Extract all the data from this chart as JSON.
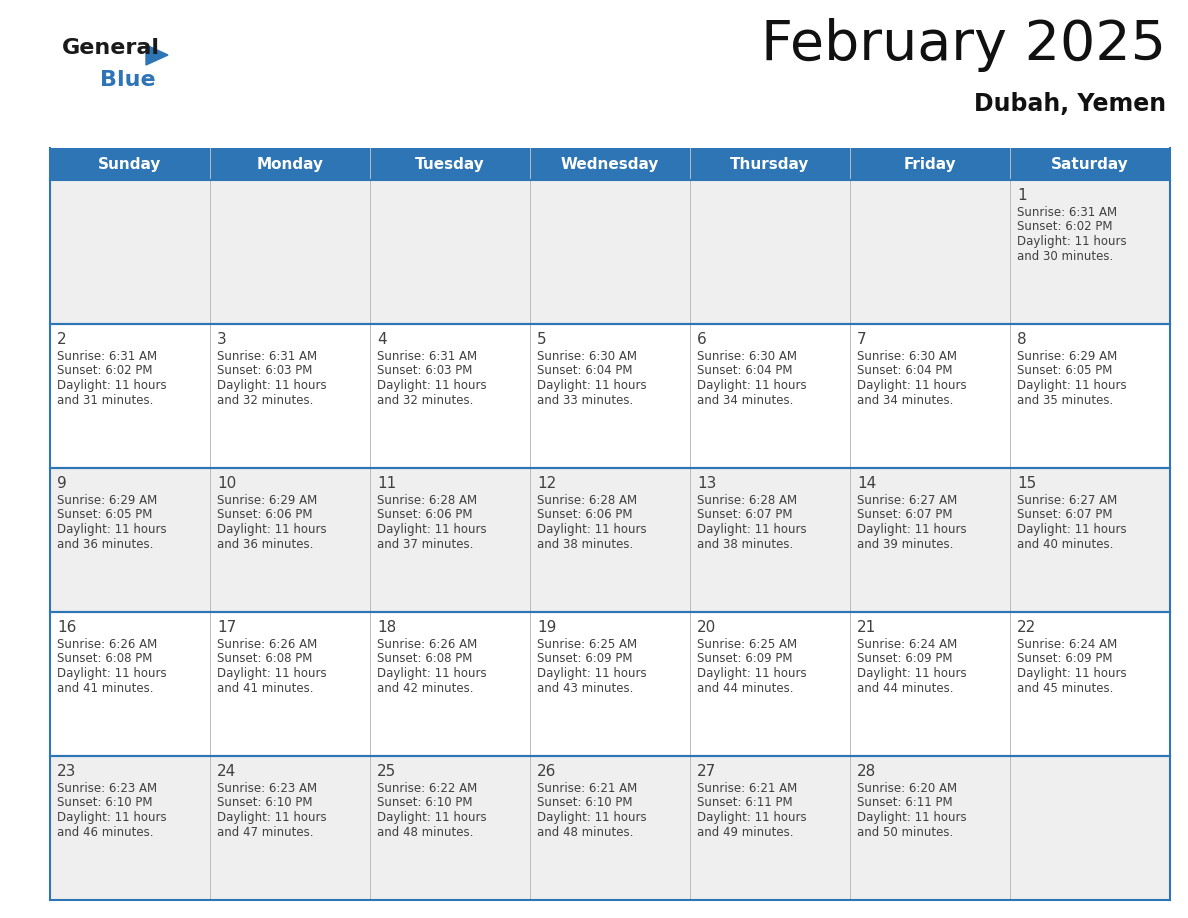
{
  "title": "February 2025",
  "subtitle": "Dubah, Yemen",
  "header_color": "#2E75B6",
  "header_text_color": "#FFFFFF",
  "border_color": "#2E75B6",
  "grid_color": "#AAAAAA",
  "days_of_week": [
    "Sunday",
    "Monday",
    "Tuesday",
    "Wednesday",
    "Thursday",
    "Friday",
    "Saturday"
  ],
  "day_text_color": "#404040",
  "row_bg_colors": [
    "#EFEFEF",
    "#FFFFFF",
    "#EFEFEF",
    "#FFFFFF",
    "#EFEFEF"
  ],
  "calendar_data": [
    [
      null,
      null,
      null,
      null,
      null,
      null,
      {
        "day": 1,
        "sunrise": "6:31 AM",
        "sunset": "6:02 PM",
        "daylight_hours": 11,
        "daylight_minutes": 30
      }
    ],
    [
      {
        "day": 2,
        "sunrise": "6:31 AM",
        "sunset": "6:02 PM",
        "daylight_hours": 11,
        "daylight_minutes": 31
      },
      {
        "day": 3,
        "sunrise": "6:31 AM",
        "sunset": "6:03 PM",
        "daylight_hours": 11,
        "daylight_minutes": 32
      },
      {
        "day": 4,
        "sunrise": "6:31 AM",
        "sunset": "6:03 PM",
        "daylight_hours": 11,
        "daylight_minutes": 32
      },
      {
        "day": 5,
        "sunrise": "6:30 AM",
        "sunset": "6:04 PM",
        "daylight_hours": 11,
        "daylight_minutes": 33
      },
      {
        "day": 6,
        "sunrise": "6:30 AM",
        "sunset": "6:04 PM",
        "daylight_hours": 11,
        "daylight_minutes": 34
      },
      {
        "day": 7,
        "sunrise": "6:30 AM",
        "sunset": "6:04 PM",
        "daylight_hours": 11,
        "daylight_minutes": 34
      },
      {
        "day": 8,
        "sunrise": "6:29 AM",
        "sunset": "6:05 PM",
        "daylight_hours": 11,
        "daylight_minutes": 35
      }
    ],
    [
      {
        "day": 9,
        "sunrise": "6:29 AM",
        "sunset": "6:05 PM",
        "daylight_hours": 11,
        "daylight_minutes": 36
      },
      {
        "day": 10,
        "sunrise": "6:29 AM",
        "sunset": "6:06 PM",
        "daylight_hours": 11,
        "daylight_minutes": 36
      },
      {
        "day": 11,
        "sunrise": "6:28 AM",
        "sunset": "6:06 PM",
        "daylight_hours": 11,
        "daylight_minutes": 37
      },
      {
        "day": 12,
        "sunrise": "6:28 AM",
        "sunset": "6:06 PM",
        "daylight_hours": 11,
        "daylight_minutes": 38
      },
      {
        "day": 13,
        "sunrise": "6:28 AM",
        "sunset": "6:07 PM",
        "daylight_hours": 11,
        "daylight_minutes": 38
      },
      {
        "day": 14,
        "sunrise": "6:27 AM",
        "sunset": "6:07 PM",
        "daylight_hours": 11,
        "daylight_minutes": 39
      },
      {
        "day": 15,
        "sunrise": "6:27 AM",
        "sunset": "6:07 PM",
        "daylight_hours": 11,
        "daylight_minutes": 40
      }
    ],
    [
      {
        "day": 16,
        "sunrise": "6:26 AM",
        "sunset": "6:08 PM",
        "daylight_hours": 11,
        "daylight_minutes": 41
      },
      {
        "day": 17,
        "sunrise": "6:26 AM",
        "sunset": "6:08 PM",
        "daylight_hours": 11,
        "daylight_minutes": 41
      },
      {
        "day": 18,
        "sunrise": "6:26 AM",
        "sunset": "6:08 PM",
        "daylight_hours": 11,
        "daylight_minutes": 42
      },
      {
        "day": 19,
        "sunrise": "6:25 AM",
        "sunset": "6:09 PM",
        "daylight_hours": 11,
        "daylight_minutes": 43
      },
      {
        "day": 20,
        "sunrise": "6:25 AM",
        "sunset": "6:09 PM",
        "daylight_hours": 11,
        "daylight_minutes": 44
      },
      {
        "day": 21,
        "sunrise": "6:24 AM",
        "sunset": "6:09 PM",
        "daylight_hours": 11,
        "daylight_minutes": 44
      },
      {
        "day": 22,
        "sunrise": "6:24 AM",
        "sunset": "6:09 PM",
        "daylight_hours": 11,
        "daylight_minutes": 45
      }
    ],
    [
      {
        "day": 23,
        "sunrise": "6:23 AM",
        "sunset": "6:10 PM",
        "daylight_hours": 11,
        "daylight_minutes": 46
      },
      {
        "day": 24,
        "sunrise": "6:23 AM",
        "sunset": "6:10 PM",
        "daylight_hours": 11,
        "daylight_minutes": 47
      },
      {
        "day": 25,
        "sunrise": "6:22 AM",
        "sunset": "6:10 PM",
        "daylight_hours": 11,
        "daylight_minutes": 48
      },
      {
        "day": 26,
        "sunrise": "6:21 AM",
        "sunset": "6:10 PM",
        "daylight_hours": 11,
        "daylight_minutes": 48
      },
      {
        "day": 27,
        "sunrise": "6:21 AM",
        "sunset": "6:11 PM",
        "daylight_hours": 11,
        "daylight_minutes": 49
      },
      {
        "day": 28,
        "sunrise": "6:20 AM",
        "sunset": "6:11 PM",
        "daylight_hours": 11,
        "daylight_minutes": 50
      },
      null
    ]
  ]
}
